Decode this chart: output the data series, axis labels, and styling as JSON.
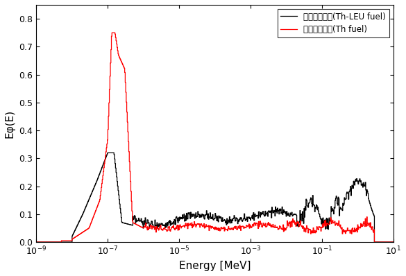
{
  "title": "",
  "xlabel": "Energy [MeV]",
  "ylabel": "Eφ(E)",
  "xmin": 1e-09,
  "xmax": 10.0,
  "ymin": 0.0,
  "ymax": 0.85,
  "yticks": [
    0.0,
    0.1,
    0.2,
    0.3,
    0.4,
    0.5,
    0.6,
    0.7,
    0.8
  ],
  "legend": [
    {
      "label": "내부순환영역(Th-LEU fuel)",
      "color": "black"
    },
    {
      "label": "외부순환영역(Th fuel)",
      "color": "red"
    }
  ],
  "background_color": "#ffffff",
  "line_width": 0.9
}
